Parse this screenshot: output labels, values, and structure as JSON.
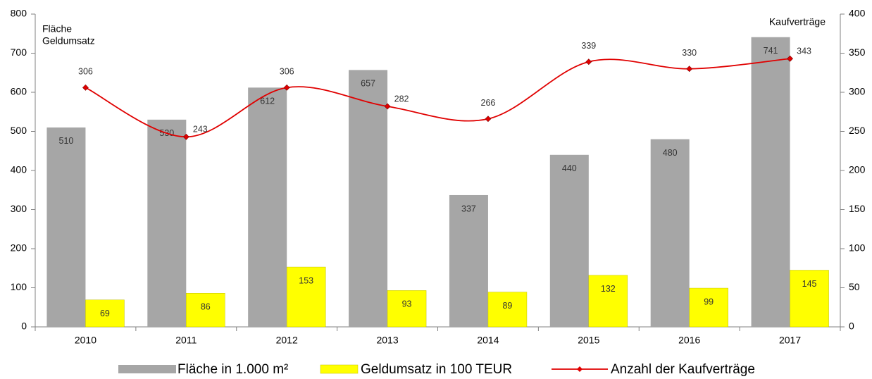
{
  "chart_data": {
    "type": "bar",
    "categories": [
      "2010",
      "2011",
      "2012",
      "2013",
      "2014",
      "2015",
      "2016",
      "2017"
    ],
    "ylabel": [
      "Fläche",
      "Geldumsatz"
    ],
    "y2label": "Kaufverträge",
    "ylim": [
      0,
      800
    ],
    "yticks": [
      0,
      100,
      200,
      300,
      400,
      500,
      600,
      700,
      800
    ],
    "y2lim": [
      0,
      400
    ],
    "y2ticks": [
      0,
      50,
      100,
      150,
      200,
      250,
      300,
      350,
      400
    ],
    "legend": "bottom",
    "series": [
      {
        "name": "Fläche in 1.000 m²",
        "type": "bar",
        "color": "#a6a6a6",
        "values": [
          510,
          530,
          612,
          657,
          337,
          440,
          480,
          741
        ]
      },
      {
        "name": "Geldumsatz in 100 TEUR",
        "type": "bar",
        "color": "#ffff00",
        "values": [
          69,
          86,
          153,
          93,
          89,
          132,
          99,
          145
        ]
      },
      {
        "name": "Anzahl der Kaufverträge",
        "type": "line",
        "axis": "y2",
        "color": "#e00000",
        "values": [
          306,
          243,
          306,
          282,
          266,
          339,
          330,
          343
        ]
      }
    ]
  }
}
